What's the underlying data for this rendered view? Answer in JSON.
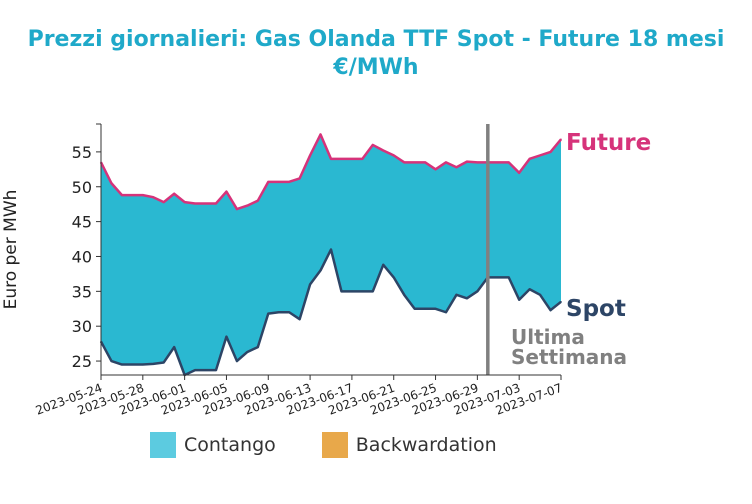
{
  "title": {
    "line1": "Prezzi giornalieri: Gas Olanda TTF Spot - Future 18 mesi",
    "line2": "€/MWh"
  },
  "colors": {
    "title": "#1fa9c9",
    "contango": "#2ab8d1",
    "backwardation": "#e8a84a",
    "future": "#d6337a",
    "spot": "#2d4566",
    "marker": "#808080"
  },
  "chart_data": {
    "type": "area",
    "ylabel": "Euro per MWh",
    "ylim": [
      23,
      59
    ],
    "yticks": [
      25,
      30,
      35,
      40,
      45,
      50,
      55
    ],
    "xlim": [
      "2023-05-24",
      "2023-07-07"
    ],
    "xticks": [
      "2023-05-24",
      "2023-05-28",
      "2023-06-01",
      "2023-06-05",
      "2023-06-09",
      "2023-06-13",
      "2023-06-17",
      "2023-06-21",
      "2023-06-25",
      "2023-06-29",
      "2023-07-03",
      "2023-07-07"
    ],
    "series": [
      {
        "name": "Future",
        "x": [
          "2023-05-24",
          "2023-05-25",
          "2023-05-26",
          "2023-05-27",
          "2023-05-28",
          "2023-05-29",
          "2023-05-30",
          "2023-05-31",
          "2023-06-01",
          "2023-06-02",
          "2023-06-03",
          "2023-06-04",
          "2023-06-05",
          "2023-06-06",
          "2023-06-07",
          "2023-06-08",
          "2023-06-09",
          "2023-06-10",
          "2023-06-11",
          "2023-06-12",
          "2023-06-13",
          "2023-06-14",
          "2023-06-15",
          "2023-06-16",
          "2023-06-17",
          "2023-06-18",
          "2023-06-19",
          "2023-06-20",
          "2023-06-21",
          "2023-06-22",
          "2023-06-23",
          "2023-06-24",
          "2023-06-25",
          "2023-06-26",
          "2023-06-27",
          "2023-06-28",
          "2023-06-29",
          "2023-06-30",
          "2023-07-01",
          "2023-07-02",
          "2023-07-03",
          "2023-07-04",
          "2023-07-05",
          "2023-07-06",
          "2023-07-07"
        ],
        "values": [
          53.5,
          50.5,
          48.8,
          48.8,
          48.8,
          48.5,
          47.8,
          49.0,
          47.8,
          47.6,
          47.6,
          47.6,
          49.3,
          46.8,
          47.3,
          48.0,
          50.7,
          50.7,
          50.7,
          51.2,
          54.5,
          57.5,
          54.0,
          54.0,
          54.0,
          54.0,
          56.0,
          55.2,
          54.5,
          53.5,
          53.5,
          53.5,
          52.5,
          53.5,
          52.8,
          53.6,
          53.5,
          53.5,
          53.5,
          53.5,
          52.0,
          54.0,
          54.5,
          55.0,
          56.8
        ]
      },
      {
        "name": "Spot",
        "x": [
          "2023-05-24",
          "2023-05-25",
          "2023-05-26",
          "2023-05-27",
          "2023-05-28",
          "2023-05-29",
          "2023-05-30",
          "2023-05-31",
          "2023-06-01",
          "2023-06-02",
          "2023-06-03",
          "2023-06-04",
          "2023-06-05",
          "2023-06-06",
          "2023-06-07",
          "2023-06-08",
          "2023-06-09",
          "2023-06-10",
          "2023-06-11",
          "2023-06-12",
          "2023-06-13",
          "2023-06-14",
          "2023-06-15",
          "2023-06-16",
          "2023-06-17",
          "2023-06-18",
          "2023-06-19",
          "2023-06-20",
          "2023-06-21",
          "2023-06-22",
          "2023-06-23",
          "2023-06-24",
          "2023-06-25",
          "2023-06-26",
          "2023-06-27",
          "2023-06-28",
          "2023-06-29",
          "2023-06-30",
          "2023-07-01",
          "2023-07-02",
          "2023-07-03",
          "2023-07-04",
          "2023-07-05",
          "2023-07-06",
          "2023-07-07"
        ],
        "values": [
          27.8,
          25.0,
          24.5,
          24.5,
          24.5,
          24.6,
          24.8,
          27.0,
          23.0,
          23.7,
          23.7,
          23.7,
          28.5,
          25.0,
          26.3,
          27.0,
          31.8,
          32.0,
          32.0,
          31.0,
          36.0,
          38.0,
          41.0,
          35.0,
          35.0,
          35.0,
          35.0,
          38.8,
          37.0,
          34.5,
          32.5,
          32.5,
          32.5,
          32.0,
          34.5,
          34.0,
          35.0,
          37.0,
          37.0,
          37.0,
          33.8,
          35.3,
          34.5,
          32.3,
          33.5
        ]
      }
    ],
    "annotations": {
      "future_label": "Future",
      "spot_label": "Spot",
      "marker_label_1": "Ultima",
      "marker_label_2": "Settimana",
      "marker_date": "2023-06-30"
    },
    "legend": {
      "placement": "bottom",
      "items": [
        "Contango",
        "Backwardation"
      ]
    },
    "grid": false
  }
}
